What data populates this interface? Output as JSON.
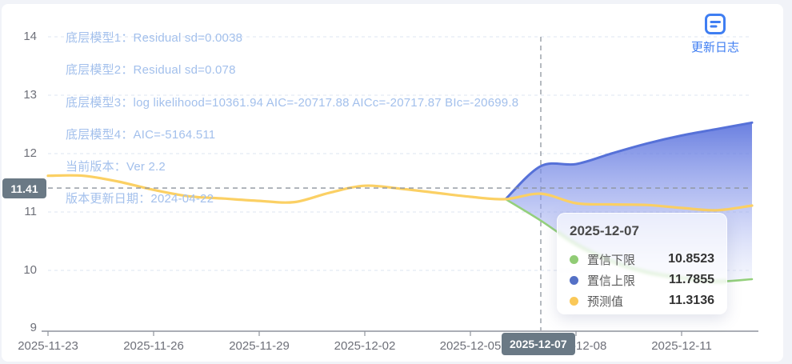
{
  "annotations": {
    "color": "#a3c0ec",
    "lines": [
      "底层模型1：Residual sd=0.0038",
      "底层模型2：Residual sd=0.078",
      "底层模型3：log likelihood=10361.94 AIC=-20717.88 AICc=-20717.87 BIc=-20699.8",
      "底层模型4：AIC=-5164.511",
      "当前版本：Ver 2.2",
      "版本更新日期：2024-04-22"
    ]
  },
  "update_log": {
    "label": "更新日志",
    "icon": "changelog-icon",
    "color": "#3f7ef2"
  },
  "axis_pointer": {
    "y_label": "11.41",
    "y_value": 11.41,
    "x_label": "2025-12-07",
    "badge_color": "#6a7985",
    "line_color": "#8e949e"
  },
  "tooltip": {
    "title": "2025-12-07",
    "rows": [
      {
        "label": "置信下限",
        "value": "10.8523",
        "color": "#91cc75"
      },
      {
        "label": "置信上限",
        "value": "11.7855",
        "color": "#5470c6"
      },
      {
        "label": "预测值",
        "value": "11.3136",
        "color": "#fac858"
      }
    ]
  },
  "chart_data": {
    "type": "line",
    "x": [
      "2025-11-23",
      "2025-11-24",
      "2025-11-25",
      "2025-11-26",
      "2025-11-27",
      "2025-11-28",
      "2025-11-29",
      "2025-11-30",
      "2025-12-01",
      "2025-12-02",
      "2025-12-03",
      "2025-12-04",
      "2025-12-05",
      "2025-12-06",
      "2025-12-07",
      "2025-12-08",
      "2025-12-09",
      "2025-12-10",
      "2025-12-11",
      "2025-12-12",
      "2025-12-13"
    ],
    "series": [
      {
        "name": "置信上限",
        "role": "upper",
        "color": "#5671d8",
        "values": [
          null,
          null,
          null,
          null,
          null,
          null,
          null,
          null,
          null,
          null,
          null,
          null,
          null,
          11.22,
          11.7855,
          11.82,
          12.0,
          12.17,
          12.31,
          12.42,
          12.53
        ]
      },
      {
        "name": "置信下限",
        "role": "lower",
        "color": "#94d07c",
        "values": [
          null,
          null,
          null,
          null,
          null,
          null,
          null,
          null,
          null,
          null,
          null,
          null,
          null,
          11.22,
          10.8523,
          10.45,
          10.16,
          9.97,
          9.87,
          9.81,
          9.85
        ]
      },
      {
        "name": "预测值",
        "role": "prediction",
        "color": "#fbd064",
        "values": [
          11.62,
          11.62,
          11.52,
          11.38,
          11.27,
          11.23,
          11.19,
          11.17,
          11.33,
          11.45,
          11.4,
          11.33,
          11.26,
          11.22,
          11.3136,
          11.15,
          11.13,
          11.12,
          11.07,
          11.03,
          11.11
        ]
      }
    ],
    "ylim": [
      9,
      14
    ],
    "y_ticks": [
      14,
      13,
      12,
      11,
      10,
      9
    ],
    "y_tick_labels": [
      "14",
      "13",
      "12",
      "11",
      "10",
      "9"
    ],
    "x_tick_labels": [
      "2025-11-23",
      "2025-11-26",
      "2025-11-29",
      "2025-12-02",
      "2025-12-05",
      "2025-12-08",
      "2025-12-11"
    ],
    "grid": true,
    "grid_color": "#dde4f0",
    "axis_color": "#8f949d",
    "band_gradient": [
      "rgba(85,110,220,0.88)",
      "rgba(143,158,236,0.60)",
      "rgba(226,231,250,0.35)"
    ],
    "legend_position": "none",
    "title": ""
  }
}
